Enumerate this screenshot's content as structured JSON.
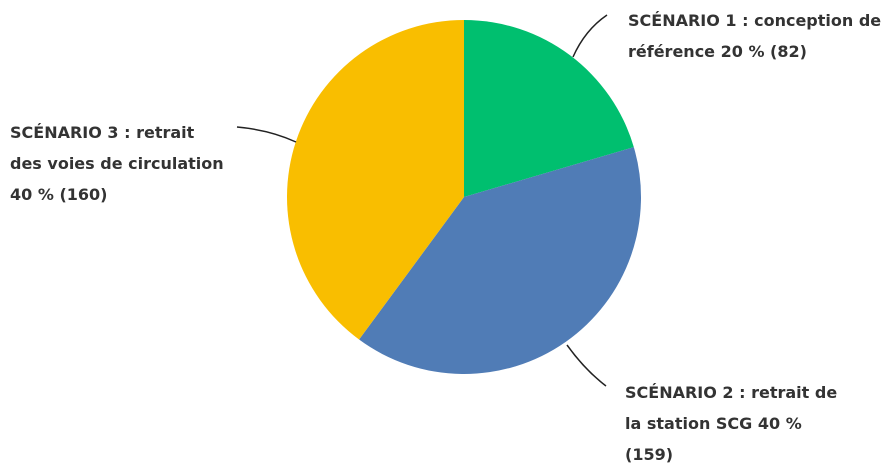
{
  "chart_data": {
    "type": "pie",
    "categories": [
      "SCÉNARIO 1 : conception de référence",
      "SCÉNARIO 2 : retrait de la station SCG",
      "SCÉNARIO 3 : retrait des voies de circulation"
    ],
    "values": [
      82,
      159,
      160
    ],
    "value_labels": [
      "20 % (82)",
      "40 % (159)",
      "40 % (160)"
    ],
    "colors": [
      "#00bf6f",
      "#507cb6",
      "#f9be00"
    ]
  }
}
